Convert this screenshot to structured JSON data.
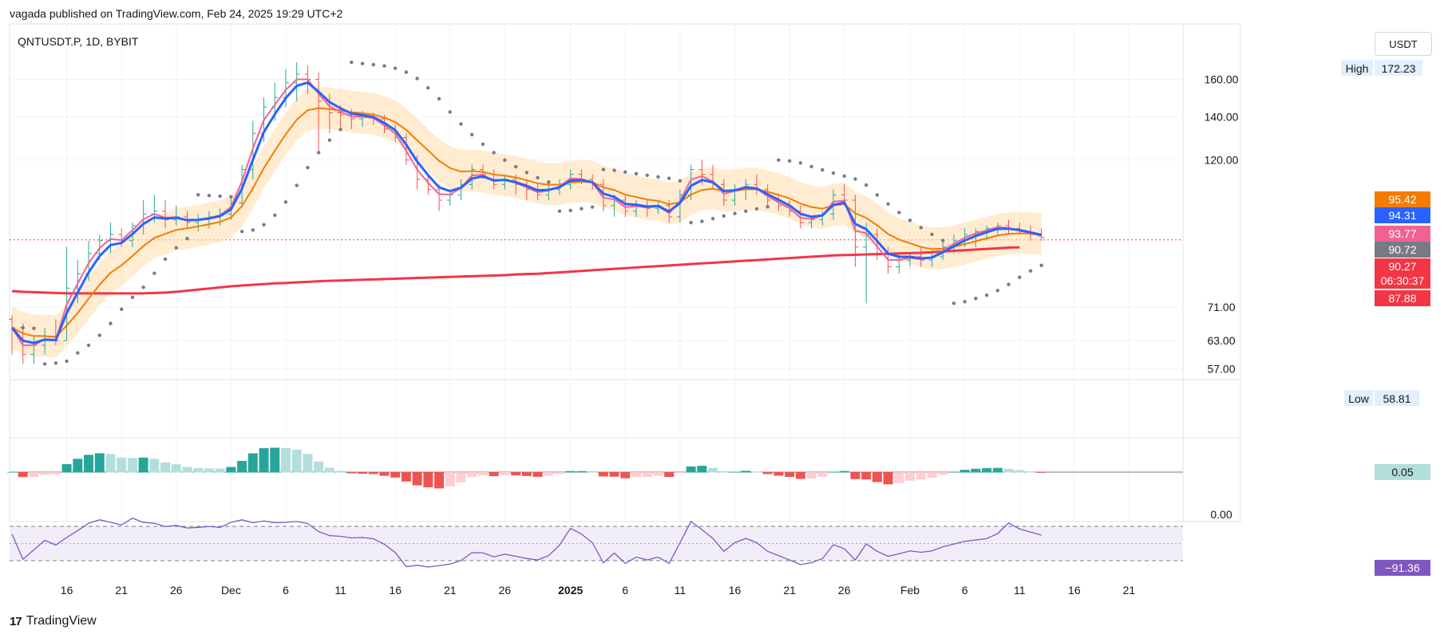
{
  "header": {
    "published": "vagada published on TradingView.com, Feb 24, 2025 19:29 UTC+2"
  },
  "symbol": {
    "title": "QNTUSDT.P, 1D, BYBIT"
  },
  "currency": "USDT",
  "footer": {
    "brand": "TradingView",
    "logo": "tradingview-logo-icon"
  },
  "colors": {
    "up": "#26a69a",
    "down": "#ef5350",
    "ema_fast": "#2962ff",
    "ema_pink": "#f06292",
    "ema_mid": "#f57c00",
    "ema_long": "#f23645",
    "band": "#ffe0b2",
    "psar": "#787b86",
    "rsi": "#7e57c2",
    "hist_up": "#26a69a",
    "hist_up_light": "#b2dfdb",
    "hist_down": "#ef5350",
    "hist_down_light": "#ffcdd2"
  },
  "chart_data": [
    {
      "type": "line",
      "pane": "price",
      "y_scale": "log",
      "ylim": [
        55,
        178
      ],
      "y_ticks": [
        "160.00",
        "140.00",
        "120.00",
        "71.00",
        "63.00",
        "57.00"
      ],
      "y_tick_values": [
        160,
        140,
        120,
        71,
        63,
        57
      ],
      "x_ticks": [
        "16",
        "21",
        "26",
        "Dec",
        "6",
        "11",
        "16",
        "21",
        "26",
        "2025",
        "6",
        "11",
        "16",
        "21",
        "26",
        "Feb",
        "6",
        "11",
        "16",
        "21"
      ],
      "x_tick_days": [
        5,
        10,
        15,
        20,
        25,
        30,
        35,
        40,
        45,
        51,
        56,
        61,
        66,
        71,
        76,
        82,
        87,
        92,
        97,
        102
      ],
      "high": {
        "label": "High",
        "value": "172.23"
      },
      "low": {
        "label": "Low",
        "value": "58.81"
      },
      "price_labels": [
        {
          "value": "95.42",
          "y": 95.42,
          "color": "#f57c00"
        },
        {
          "value": "94.31",
          "y": 94.31,
          "color": "#2962ff"
        },
        {
          "value": "93.77",
          "y": 93.77,
          "color": "#f06292"
        },
        {
          "value": "90.72",
          "y": 90.72,
          "color": "#787b86"
        },
        {
          "value": "90.27",
          "y": 90.27,
          "color": "#f23645"
        },
        {
          "value": "06:30:37",
          "y": 88.9,
          "color": "#f23645"
        },
        {
          "value": "87.88",
          "y": 86.6,
          "color": "#f23645"
        }
      ],
      "last_price": 90.27,
      "candles": [
        [
          68,
          69,
          60,
          66
        ],
        [
          66,
          67,
          58,
          60
        ],
        [
          60,
          64,
          58,
          62
        ],
        [
          62,
          66,
          60,
          64
        ],
        [
          64,
          68,
          62,
          63
        ],
        [
          63,
          88,
          63,
          76
        ],
        [
          76,
          84,
          72,
          80
        ],
        [
          80,
          90,
          78,
          86
        ],
        [
          86,
          92,
          84,
          90
        ],
        [
          90,
          96,
          86,
          92
        ],
        [
          92,
          94,
          88,
          90
        ],
        [
          90,
          96,
          88,
          95
        ],
        [
          95,
          104,
          92,
          99
        ],
        [
          99,
          106,
          96,
          100
        ],
        [
          100,
          104,
          94,
          97
        ],
        [
          97,
          102,
          95,
          98
        ],
        [
          98,
          100,
          94,
          96
        ],
        [
          96,
          99,
          93,
          97
        ],
        [
          97,
          100,
          94,
          98
        ],
        [
          98,
          101,
          95,
          99
        ],
        [
          99,
          105,
          97,
          103
        ],
        [
          103,
          118,
          102,
          116
        ],
        [
          116,
          138,
          112,
          132
        ],
        [
          132,
          150,
          128,
          145
        ],
        [
          145,
          158,
          138,
          150
        ],
        [
          150,
          166,
          145,
          158
        ],
        [
          158,
          170,
          148,
          163
        ],
        [
          163,
          168,
          152,
          160
        ],
        [
          160,
          164,
          124,
          148
        ],
        [
          148,
          152,
          132,
          142
        ],
        [
          142,
          146,
          134,
          141
        ],
        [
          141,
          144,
          134,
          139
        ],
        [
          139,
          143,
          135,
          140
        ],
        [
          140,
          142,
          136,
          139
        ],
        [
          139,
          141,
          132,
          134
        ],
        [
          134,
          136,
          128,
          130
        ],
        [
          130,
          132,
          118,
          120
        ],
        [
          120,
          122,
          108,
          112
        ],
        [
          112,
          114,
          106,
          108
        ],
        [
          108,
          110,
          100,
          104
        ],
        [
          104,
          108,
          102,
          106
        ],
        [
          106,
          112,
          104,
          110
        ],
        [
          110,
          118,
          108,
          116
        ],
        [
          116,
          118,
          112,
          114
        ],
        [
          114,
          116,
          108,
          110
        ],
        [
          110,
          114,
          108,
          112
        ],
        [
          112,
          114,
          106,
          110
        ],
        [
          110,
          112,
          104,
          108
        ],
        [
          108,
          110,
          104,
          106
        ],
        [
          106,
          110,
          104,
          108
        ],
        [
          108,
          112,
          106,
          110
        ],
        [
          110,
          116,
          108,
          114
        ],
        [
          114,
          116,
          110,
          112
        ],
        [
          112,
          114,
          108,
          110
        ],
        [
          110,
          112,
          100,
          102
        ],
        [
          102,
          106,
          98,
          104
        ],
        [
          104,
          106,
          98,
          100
        ],
        [
          100,
          104,
          98,
          102
        ],
        [
          102,
          104,
          98,
          101
        ],
        [
          101,
          104,
          99,
          102
        ],
        [
          102,
          104,
          96,
          98
        ],
        [
          98,
          108,
          96,
          106
        ],
        [
          106,
          118,
          104,
          116
        ],
        [
          116,
          120,
          110,
          114
        ],
        [
          114,
          118,
          108,
          110
        ],
        [
          110,
          112,
          102,
          104
        ],
        [
          104,
          110,
          102,
          108
        ],
        [
          108,
          112,
          104,
          110
        ],
        [
          110,
          114,
          106,
          108
        ],
        [
          108,
          110,
          102,
          104
        ],
        [
          104,
          106,
          100,
          102
        ],
        [
          102,
          104,
          98,
          100
        ],
        [
          100,
          102,
          94,
          96
        ],
        [
          96,
          98,
          94,
          97
        ],
        [
          97,
          100,
          95,
          99
        ],
        [
          99,
          108,
          97,
          106
        ],
        [
          106,
          110,
          102,
          104
        ],
        [
          104,
          106,
          82,
          88
        ],
        [
          88,
          96,
          72,
          92
        ],
        [
          92,
          94,
          84,
          86
        ],
        [
          86,
          88,
          80,
          82
        ],
        [
          82,
          86,
          80,
          84
        ],
        [
          84,
          86,
          82,
          85
        ],
        [
          85,
          88,
          82,
          84
        ],
        [
          84,
          86,
          82,
          85
        ],
        [
          85,
          90,
          84,
          88
        ],
        [
          88,
          92,
          86,
          90
        ],
        [
          90,
          94,
          88,
          92
        ],
        [
          92,
          94,
          88,
          93
        ],
        [
          93,
          95,
          90,
          94
        ],
        [
          94,
          96,
          92,
          95
        ],
        [
          95,
          97,
          92,
          94
        ],
        [
          94,
          96,
          92,
          93
        ],
        [
          93,
          95,
          90,
          92
        ],
        [
          92,
          94,
          90,
          91
        ]
      ],
      "series": [
        {
          "key": "ema_long",
          "values": [
            75.2,
            75.0,
            74.9,
            74.8,
            74.7,
            74.6,
            74.6,
            74.6,
            74.6,
            74.6,
            74.6,
            74.6,
            74.6,
            74.7,
            74.8,
            75.0,
            75.3,
            75.6,
            75.9,
            76.2,
            76.5,
            76.7,
            76.9,
            77.1,
            77.3,
            77.4,
            77.6,
            77.7,
            77.9,
            78.0,
            78.1,
            78.2,
            78.3,
            78.4,
            78.5,
            78.6,
            78.7,
            78.8,
            78.9,
            79.0,
            79.1,
            79.2,
            79.3,
            79.4,
            79.5,
            79.6,
            79.8,
            79.9,
            80.0,
            80.2,
            80.4,
            80.6,
            80.8,
            81.0,
            81.2,
            81.4,
            81.6,
            81.8,
            82.0,
            82.2,
            82.4,
            82.6,
            82.8,
            83.0,
            83.2,
            83.4,
            83.6,
            83.8,
            84.0,
            84.2,
            84.4,
            84.6,
            84.8,
            85.0,
            85.2,
            85.4,
            85.5,
            85.6,
            85.7,
            85.8,
            85.9,
            86.0,
            86.1,
            86.2,
            86.4,
            86.6,
            86.8,
            87.0,
            87.2,
            87.4,
            87.6,
            87.8,
            87.9
          ]
        }
      ]
    },
    {
      "type": "bar",
      "pane": "histogram",
      "value_label": "0.05",
      "values": []
    },
    {
      "type": "line",
      "pane": "oscillator",
      "y_ticks": [
        "0.00"
      ],
      "value_label": "−91.36",
      "values": []
    }
  ]
}
